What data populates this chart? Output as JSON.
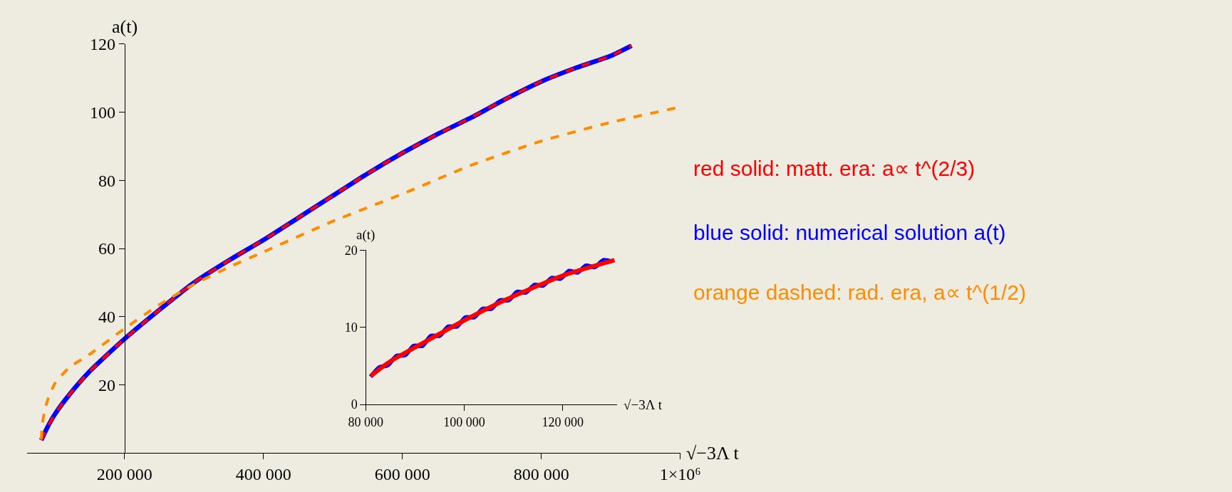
{
  "chart_data": [
    {
      "type": "line",
      "xlabel": "√−3Λ t",
      "ylabel": "a(t)",
      "xlim": [
        60000,
        1000000
      ],
      "ylim": [
        0,
        120
      ],
      "xticks": [
        {
          "value": 200000,
          "label": "200 000"
        },
        {
          "value": 400000,
          "label": "400 000"
        },
        {
          "value": 600000,
          "label": "600 000"
        },
        {
          "value": 800000,
          "label": "800 000"
        },
        {
          "value": 1000000,
          "label": "1×10⁶"
        }
      ],
      "yticks": [
        20,
        40,
        60,
        80,
        100,
        120
      ],
      "grid": false,
      "legend": false,
      "series": [
        {
          "name": "red solid: matt. era: a∝ t^(2/3)",
          "color": "#ff0000",
          "line_style": "dashed",
          "x": [
            80000,
            90000,
            100000,
            120000,
            150000,
            200000,
            250000,
            300000,
            350000,
            400000,
            450000,
            500000,
            550000,
            600000,
            650000,
            700000,
            750000,
            800000,
            850000,
            900000,
            930000
          ],
          "values": [
            3.8,
            8,
            11.5,
            17,
            24,
            33.5,
            42,
            50,
            56.5,
            62.5,
            69,
            75.5,
            82,
            88,
            93.5,
            98.5,
            104,
            109,
            113,
            116.5,
            119.5
          ]
        },
        {
          "name": "blue solid: numerical solution a(t)",
          "color": "#0000ff",
          "line_style": "solid",
          "x": [
            80000,
            90000,
            100000,
            120000,
            150000,
            200000,
            250000,
            300000,
            350000,
            400000,
            450000,
            500000,
            550000,
            600000,
            650000,
            700000,
            750000,
            800000,
            850000,
            900000,
            930000
          ],
          "values": [
            3.8,
            8,
            11.5,
            17,
            24,
            33.5,
            42,
            50,
            56.5,
            62.5,
            69,
            75.5,
            82,
            88,
            93.5,
            98.5,
            104,
            109,
            113,
            116.5,
            119.5
          ]
        },
        {
          "name": "orange dashed: rad. era, a∝ t^(1/2)",
          "color": "#ff8c00",
          "line_style": "dashed",
          "x": [
            80000,
            82000,
            85000,
            90000,
            100000,
            120000,
            150000,
            200000,
            250000,
            300000,
            350000,
            400000,
            500000,
            600000,
            700000,
            800000,
            900000,
            1000000
          ],
          "values": [
            4,
            9,
            12.5,
            16,
            20.5,
            25,
            29,
            36.5,
            43.5,
            49.5,
            54.5,
            59,
            68,
            76,
            84.5,
            91.5,
            97,
            101.5
          ]
        }
      ]
    },
    {
      "type": "line",
      "xlabel": "√−3Λ t",
      "ylabel": "a(t)",
      "xlim": [
        80000,
        131000
      ],
      "ylim": [
        0,
        20
      ],
      "xticks": [
        {
          "value": 80000,
          "label": "80 000"
        },
        {
          "value": 100000,
          "label": "100 000"
        },
        {
          "value": 120000,
          "label": "120 000"
        }
      ],
      "yticks": [
        0,
        10,
        20
      ],
      "grid": false,
      "legend": false,
      "series": [
        {
          "color": "#0000ff",
          "line_style": "solid",
          "x": [
            81000,
            82750,
            84500,
            86250,
            88000,
            89750,
            91500,
            93250,
            95000,
            96750,
            98500,
            100250,
            102000,
            103750,
            105500,
            107250,
            109000,
            110750,
            112500,
            114250,
            116000,
            117750,
            119500,
            121250,
            123000,
            124750,
            126500,
            128250,
            130000
          ],
          "values": [
            3.6,
            4.8,
            5.1,
            6.3,
            6.4,
            7.6,
            7.6,
            8.9,
            8.9,
            10.1,
            10.1,
            11.3,
            11.3,
            12.4,
            12.4,
            13.5,
            13.5,
            14.6,
            14.5,
            15.5,
            15.4,
            16.4,
            16.3,
            17.3,
            17.1,
            18.0,
            17.8,
            18.7,
            18.5
          ]
        },
        {
          "color": "#ff0000",
          "line_style": "solid",
          "x": [
            81000,
            85000,
            92000,
            100000,
            108500,
            120000,
            130500
          ],
          "values": [
            3.7,
            5.6,
            8.1,
            10.9,
            13.6,
            16.7,
            18.7
          ]
        }
      ]
    }
  ]
}
